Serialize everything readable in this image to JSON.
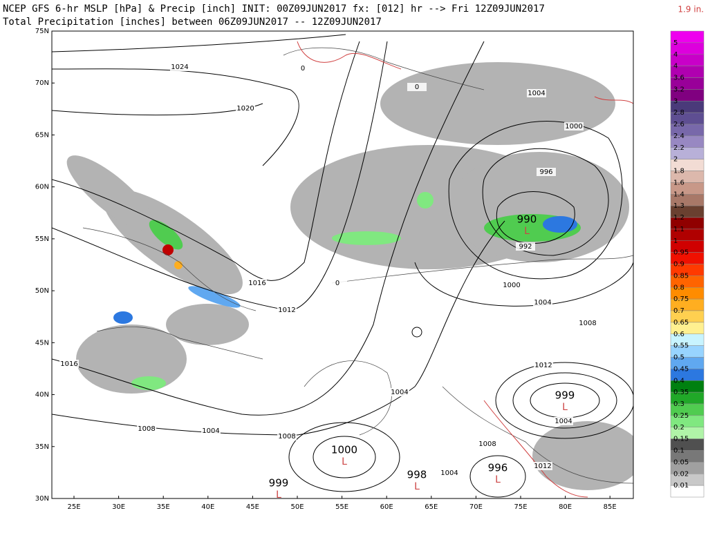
{
  "header": {
    "line1": "NCEP GFS 6-hr MSLP [hPa] & Precip [inch] INIT: 00Z09JUN2017 fx: [012] hr --> Fri 12Z09JUN2017",
    "line2": "Total Precipitation [inches] between 06Z09JUN2017 -- 12Z09JUN2017",
    "max_label": "1.9 in."
  },
  "map": {
    "lat_labels": [
      "30N",
      "35N",
      "40N",
      "45N",
      "50N",
      "55N",
      "60N",
      "65N",
      "70N",
      "75N"
    ],
    "lon_labels": [
      "25E",
      "30E",
      "35E",
      "40E",
      "45E",
      "50E",
      "55E",
      "60E",
      "65E",
      "70E",
      "75E",
      "80E",
      "85E"
    ],
    "isobar_labels": [
      1024,
      1020,
      1016,
      1012,
      1016,
      1008,
      1004,
      1008,
      1004,
      1004,
      1008,
      1012,
      1004,
      1012,
      1008,
      1004,
      1000,
      992,
      996,
      1000,
      1004,
      0,
      0,
      0
    ],
    "lows": [
      {
        "pressure": 990,
        "symbol": "L"
      },
      {
        "pressure": 1000,
        "symbol": "L"
      },
      {
        "pressure": 999,
        "symbol": "L"
      },
      {
        "pressure": 998,
        "symbol": "L"
      },
      {
        "pressure": 996,
        "symbol": "L"
      },
      {
        "pressure": 999,
        "symbol": "L"
      }
    ]
  },
  "colorbar": {
    "labels": [
      "5",
      "4",
      "4",
      "3.6",
      "3.2",
      "3",
      "2.8",
      "2.6",
      "2.4",
      "2.2",
      "2",
      "1.8",
      "1.6",
      "1.4",
      "1.3",
      "1.2",
      "1.1",
      "1",
      "0.95",
      "0.9",
      "0.85",
      "0.8",
      "0.75",
      "0.7",
      "0.65",
      "0.6",
      "0.55",
      "0.5",
      "0.45",
      "0.4",
      "0.35",
      "0.3",
      "0.25",
      "0.2",
      "0.15",
      "0.1",
      "0.05",
      "0.02",
      "0.01"
    ],
    "colors": [
      "#ee00ee",
      "#dd00dd",
      "#c800c8",
      "#b000b0",
      "#990099",
      "#800080",
      "#4a3a7a",
      "#5e4e92",
      "#7868aa",
      "#9888c2",
      "#b8b0d8",
      "#f2dcd4",
      "#dcb8ac",
      "#c89888",
      "#a87868",
      "#6a4030",
      "#900000",
      "#b00000",
      "#d00000",
      "#f01000",
      "#ff3a00",
      "#ff6400",
      "#ff8c00",
      "#ffae20",
      "#ffd050",
      "#fff090",
      "#c8f4ff",
      "#98d4ff",
      "#60a8f0",
      "#2c78e0",
      "#008010",
      "#20a828",
      "#50cc50",
      "#80e880",
      "#b0f4a8",
      "#505050",
      "#787878",
      "#a0a0a0",
      "#c8c8c8",
      "#ffffff"
    ]
  }
}
